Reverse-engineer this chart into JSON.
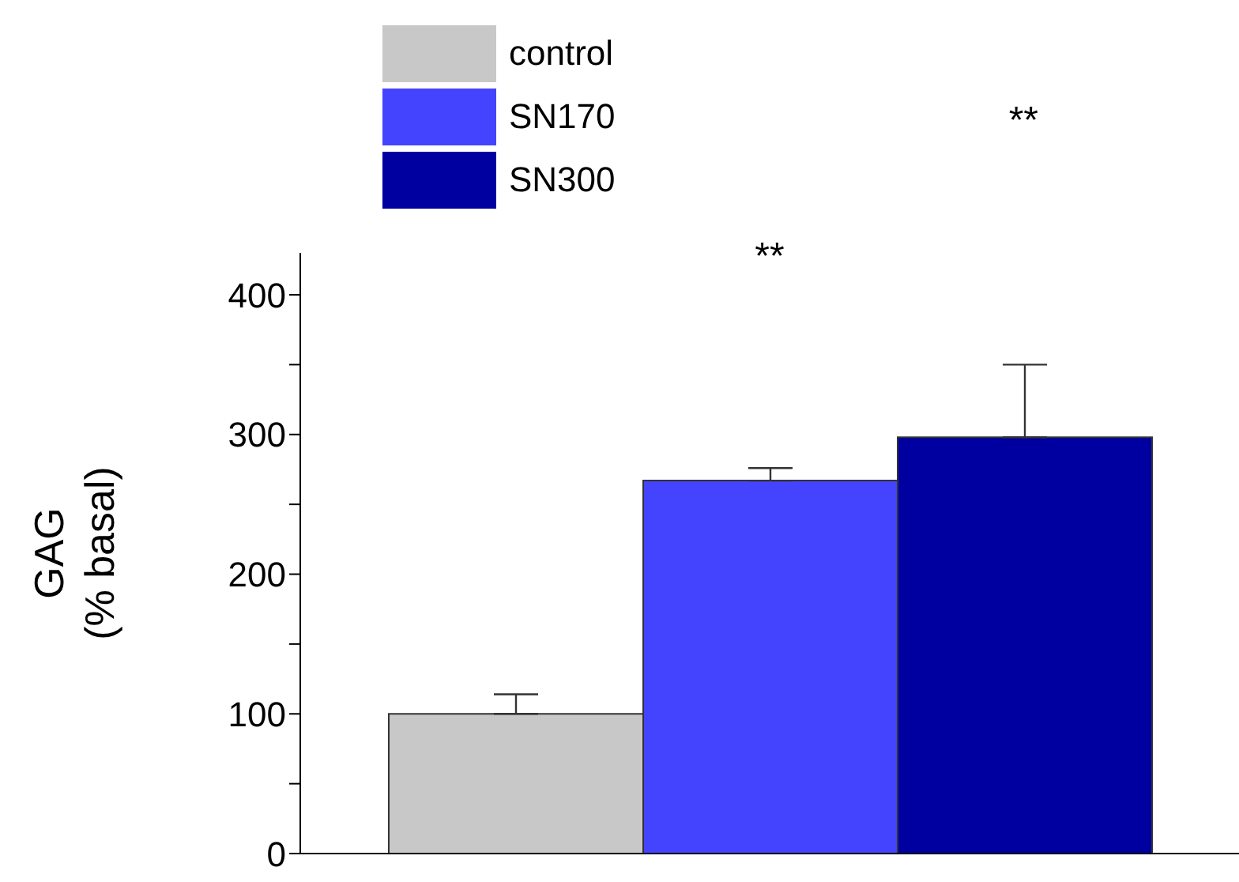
{
  "chart_data": {
    "type": "bar",
    "ylabel": "GAG\n(% basal)",
    "categories": [
      null
    ],
    "series": [
      {
        "name": "control",
        "color": "#c8c8c8",
        "values": [
          100
        ],
        "errors": [
          [
            100,
            114
          ]
        ]
      },
      {
        "name": "SN170",
        "color": "#4444ff",
        "values": [
          267
        ],
        "errors": [
          [
            267,
            276
          ]
        ]
      },
      {
        "name": "SN300",
        "color": "#0000a0",
        "values": [
          298
        ],
        "errors": [
          [
            298,
            350
          ]
        ]
      }
    ],
    "annotations": [
      "**",
      "**"
    ],
    "ylim": [
      0,
      430
    ],
    "yticks": [
      0,
      {
        "value": 50,
        "label": null
      },
      100,
      {
        "value": 150,
        "label": null
      },
      200,
      {
        "value": 250,
        "label": null
      },
      300,
      {
        "value": 350,
        "label": null
      },
      400
    ],
    "legend": "top left",
    "grid": false
  }
}
